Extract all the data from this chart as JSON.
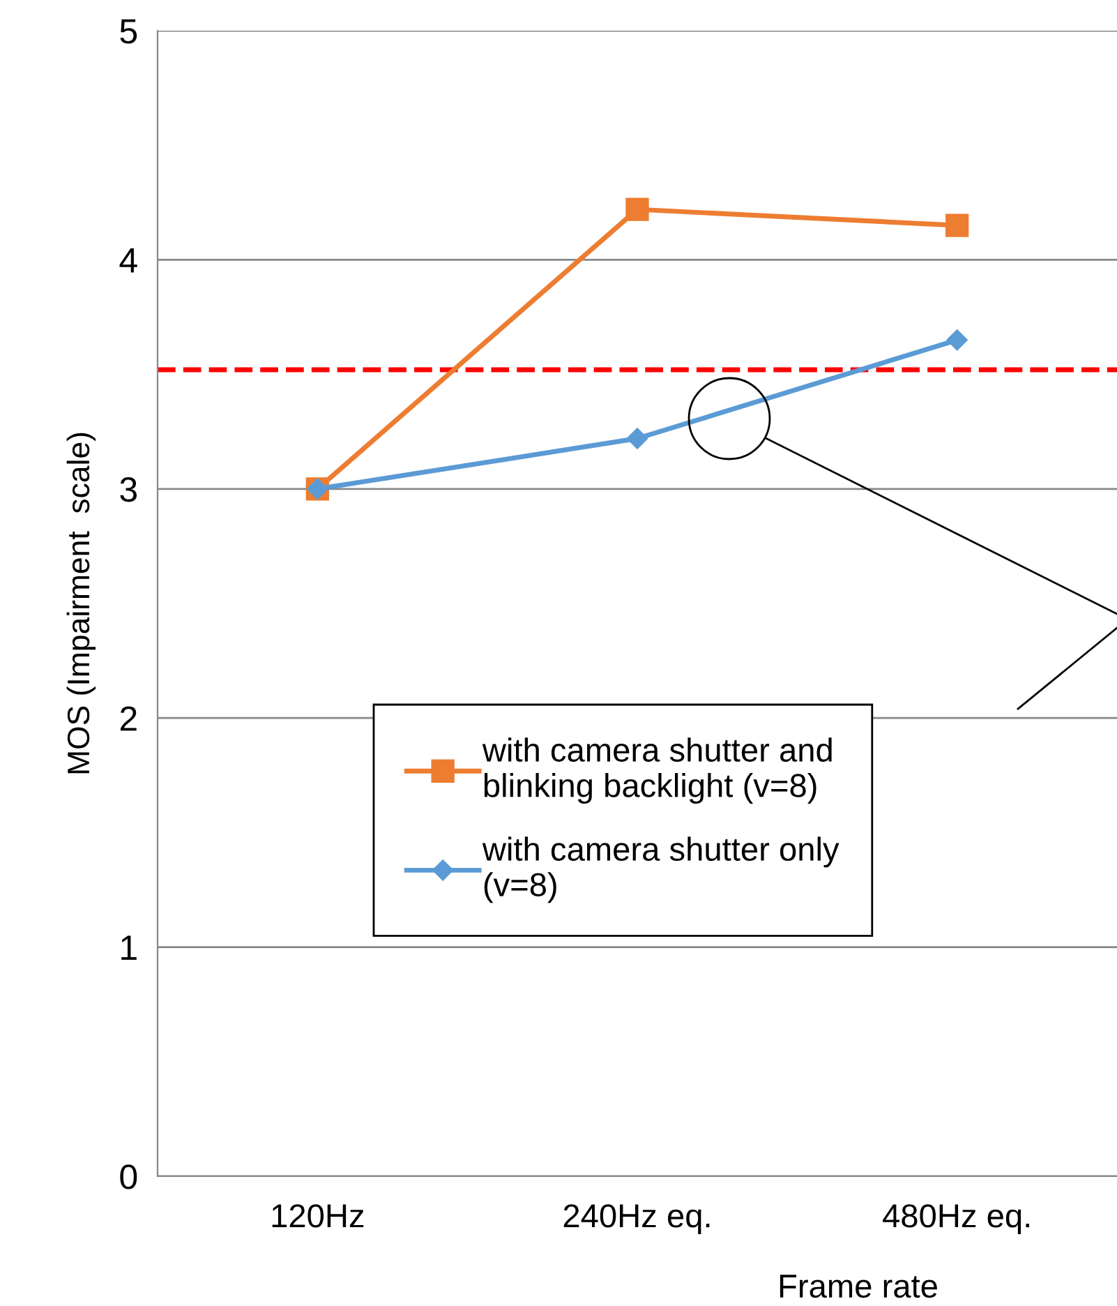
{
  "chart_data": {
    "type": "line",
    "categories": [
      "120Hz",
      "240Hz eq.",
      "480Hz eq."
    ],
    "series": [
      {
        "name": "with camera shutter and\nblinking backlight (v=8)",
        "color": "#ed7d31",
        "marker": "square",
        "values": [
          3.0,
          4.22,
          4.15
        ]
      },
      {
        "name": "with camera shutter only\n(v=8)",
        "color": "#5b9bd5",
        "marker": "diamond",
        "values": [
          3.0,
          3.22,
          3.65
        ]
      }
    ],
    "xlabel": "Frame rate",
    "ylabel": "MOS (Impairment  scale)",
    "ylim": [
      0,
      5
    ],
    "yticks": [
      0,
      1,
      2,
      3,
      4,
      5
    ],
    "grid": "y",
    "legend": "right",
    "line_style": "solid",
    "ref_lines": [
      {
        "axis": "y",
        "value": 3.52,
        "color": "#ff0000",
        "line_style": "dashed"
      }
    ]
  }
}
